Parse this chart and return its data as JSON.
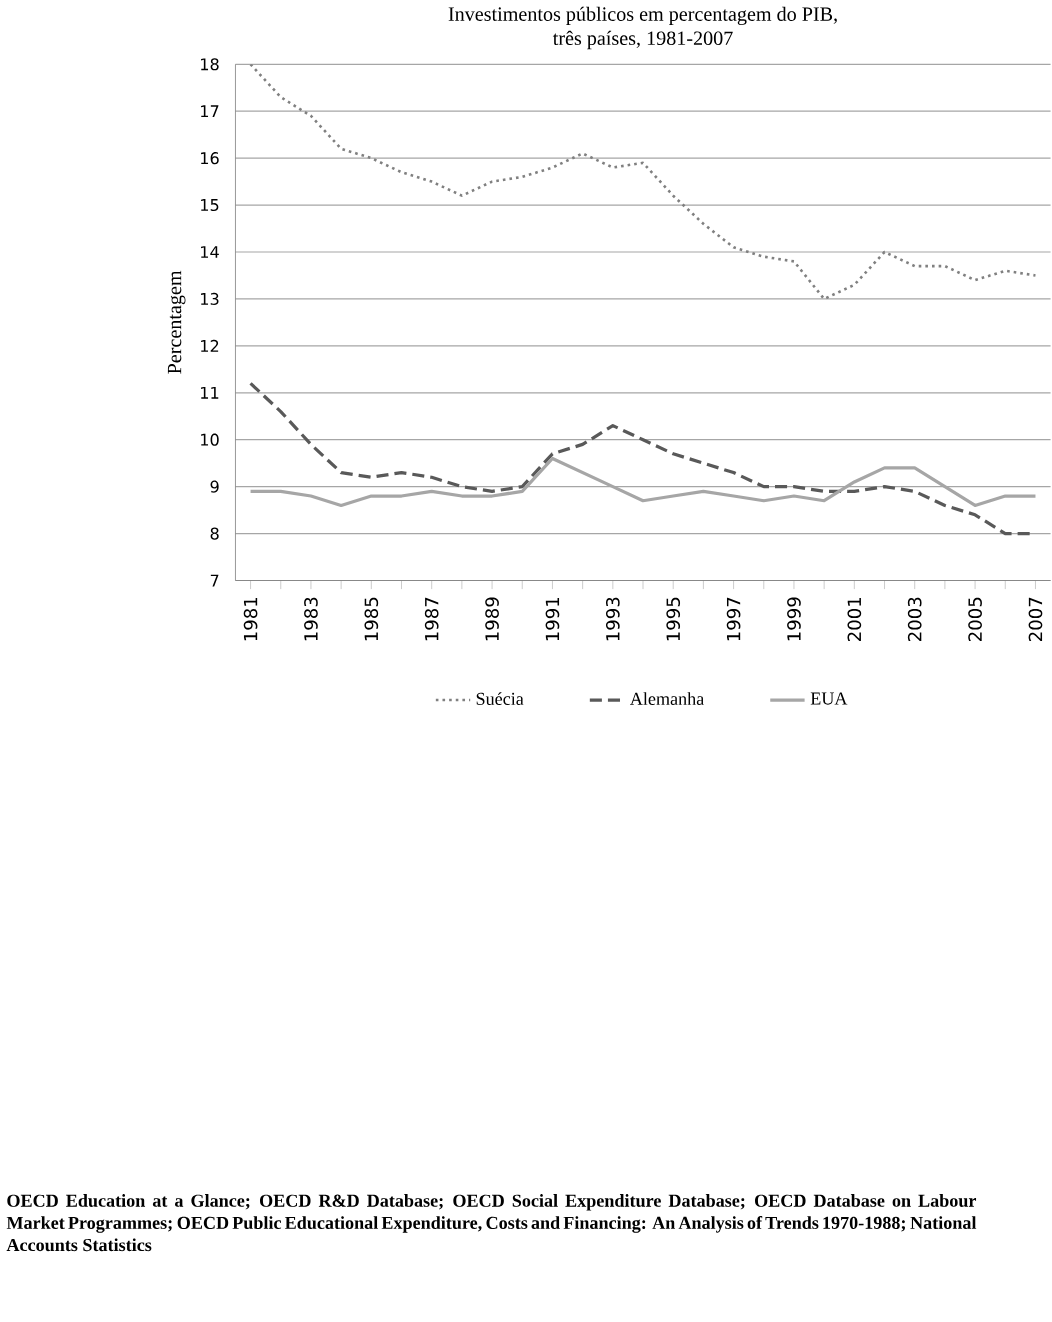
{
  "chart_data": {
    "type": "line",
    "title": "Investimentos públicos em percentagem do PIB,",
    "subtitle": "três países, 1981-2007",
    "ylabel": "Percentagem",
    "categories": [
      "1981",
      null,
      "1983",
      null,
      "1985",
      null,
      "1987",
      null,
      "1989",
      null,
      "1991",
      null,
      "1993",
      null,
      "1995",
      null,
      "1997",
      null,
      "1999",
      null,
      "2001",
      null,
      "2003",
      null,
      "2005",
      null,
      "2007"
    ],
    "series": [
      {
        "name": "Suécia",
        "color": "#808080",
        "line_style": "dotted",
        "values": [
          18.0,
          17.3,
          16.9,
          16.2,
          16.0,
          15.7,
          15.5,
          15.2,
          15.5,
          15.6,
          15.8,
          16.1,
          15.8,
          15.9,
          15.2,
          14.6,
          14.1,
          13.9,
          13.8,
          13.0,
          13.3,
          14.0,
          13.7,
          13.7,
          13.4,
          13.6,
          13.5
        ]
      },
      {
        "name": "Alemanha",
        "color": "#595959",
        "line_style": "dashed",
        "values": [
          11.2,
          10.6,
          9.9,
          9.3,
          9.2,
          9.3,
          9.2,
          9.0,
          8.9,
          9.0,
          9.7,
          9.9,
          10.3,
          10.0,
          9.7,
          9.5,
          9.3,
          9.0,
          9.0,
          8.9,
          8.9,
          9.0,
          8.9,
          8.6,
          8.4,
          8.0,
          8.0
        ]
      },
      {
        "name": "EUA",
        "color": "#a6a6a6",
        "line_style": "solid",
        "values": [
          8.9,
          8.9,
          8.8,
          8.6,
          8.8,
          8.8,
          8.9,
          8.8,
          8.8,
          8.9,
          9.6,
          9.3,
          9.0,
          8.7,
          8.8,
          8.9,
          8.8,
          8.7,
          8.8,
          8.7,
          9.1,
          9.4,
          9.4,
          9.0,
          8.6,
          8.8,
          8.8
        ]
      }
    ],
    "ylim": [
      7,
      18
    ],
    "yticks": [
      7,
      8,
      9,
      10,
      11,
      12,
      13,
      14,
      15,
      16,
      17,
      18
    ],
    "grid": "y",
    "legend": "bottom",
    "annotations": [
      "OECD Education at a Glance; OECD R&D Database; OECD Social Expenditure Database; OECD Database on Labour Market Programmes; OECD Public Educational Expenditure, Costs and Financing: An Analysis of Trends 1970-1988; National Accounts Statistics"
    ]
  }
}
